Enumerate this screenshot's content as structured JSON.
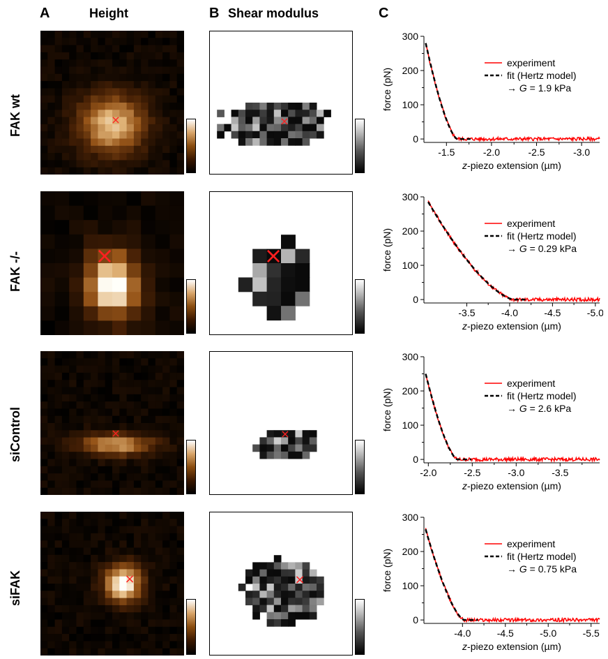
{
  "panels": {
    "A": {
      "letter": "A",
      "title": "Height"
    },
    "B": {
      "letter": "B",
      "title": "Shear modulus"
    },
    "C": {
      "letter": "C"
    }
  },
  "rows": [
    {
      "label": "FAK wt",
      "marker": "×"
    },
    {
      "label": "FAK -/-",
      "marker": "×"
    },
    {
      "label": "siControl",
      "marker": "×"
    },
    {
      "label": "siFAK",
      "marker": "×"
    }
  ],
  "colors": {
    "experiment": "#ff0000",
    "fit": "#000000"
  },
  "chart_data": [
    {
      "type": "line",
      "xlabel": "z-piezo extension (µm)",
      "ylabel": "force (pN)",
      "xlim": [
        -1.25,
        -3.2
      ],
      "ylim": [
        -10,
        300
      ],
      "xticks": [
        -1.5,
        -2.0,
        -2.5,
        -3.0
      ],
      "xtick_labels": [
        "-1.5",
        "-2.0",
        "-2.5",
        "-3.0"
      ],
      "yticks": [
        0,
        100,
        200,
        300
      ],
      "contact_x": -1.62,
      "start_x": -1.27,
      "max_force": 280,
      "series": [
        {
          "name": "experiment"
        },
        {
          "name": "fit (Hertz model)"
        }
      ],
      "annotation": {
        "arrow": "→",
        "var": "G",
        "rest": " = 1.9 kPa"
      }
    },
    {
      "type": "line",
      "xlabel": "z-piezo extension (µm)",
      "ylabel": "force (pN)",
      "xlim": [
        -3.0,
        -5.05
      ],
      "ylim": [
        -10,
        300
      ],
      "xticks": [
        -3.5,
        -4.0,
        -4.5,
        -5.0
      ],
      "xtick_labels": [
        "-3.5",
        "-4.0",
        "-4.5",
        "-5.0"
      ],
      "yticks": [
        0,
        100,
        200,
        300
      ],
      "contact_x": -4.05,
      "start_x": -3.05,
      "max_force": 285,
      "series": [
        {
          "name": "experiment"
        },
        {
          "name": "fit (Hertz model)"
        }
      ],
      "annotation": {
        "arrow": "→",
        "var": "G",
        "rest": " = 0.29 kPa"
      }
    },
    {
      "type": "line",
      "xlabel": "z-piezo extension (µm)",
      "ylabel": "force (pN)",
      "xlim": [
        -1.95,
        -3.95
      ],
      "ylim": [
        -10,
        300
      ],
      "xticks": [
        -2.0,
        -2.5,
        -3.0,
        -3.5
      ],
      "xtick_labels": [
        "-2.0",
        "-2.5",
        "-3.0",
        "-3.5"
      ],
      "yticks": [
        0,
        100,
        200,
        300
      ],
      "contact_x": -2.33,
      "start_x": -1.97,
      "max_force": 250,
      "series": [
        {
          "name": "experiment"
        },
        {
          "name": "fit (Hertz model)"
        }
      ],
      "annotation": {
        "arrow": "→",
        "var": "G",
        "rest": " = 2.6 kPa"
      }
    },
    {
      "type": "line",
      "xlabel": "z-piezo extension (µm)",
      "ylabel": "force (pN)",
      "xlim": [
        -3.55,
        -5.6
      ],
      "ylim": [
        -10,
        300
      ],
      "xticks": [
        -4.0,
        -4.5,
        -5.0,
        -5.5
      ],
      "xtick_labels": [
        "-4.0",
        "-4.5",
        "-5.0",
        "-5.5"
      ],
      "yticks": [
        0,
        100,
        200,
        300
      ],
      "contact_x": -4.02,
      "start_x": -3.57,
      "max_force": 265,
      "series": [
        {
          "name": "experiment"
        },
        {
          "name": "fit (Hertz model)"
        }
      ],
      "annotation": {
        "arrow": "→",
        "var": "G",
        "rest": " = 0.75 kPa"
      }
    }
  ]
}
